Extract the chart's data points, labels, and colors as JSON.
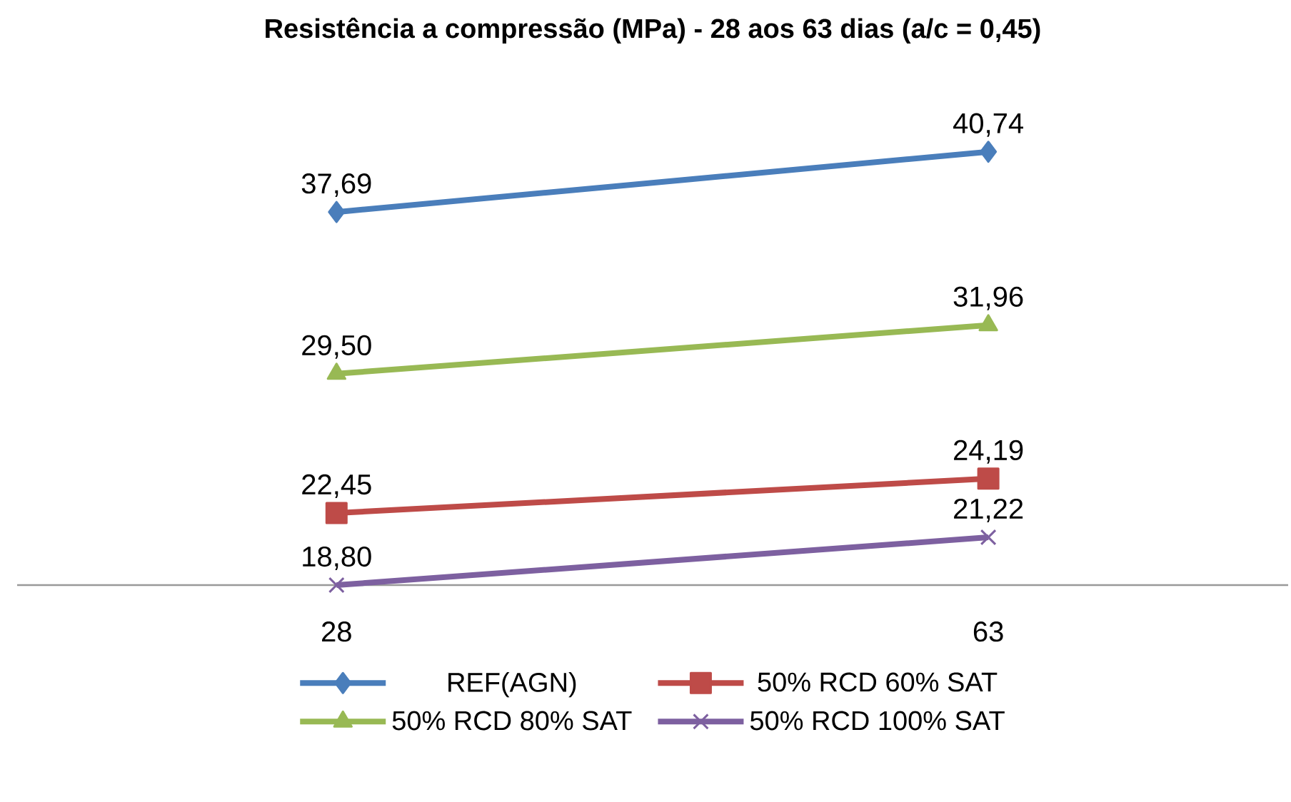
{
  "chart_data": {
    "type": "line",
    "title": "Resistência a compressão (MPa) - 28 aos 63 dias (a/c = 0,45)",
    "categories": [
      "28",
      "63"
    ],
    "series": [
      {
        "name": "REF(AGN)",
        "color": "#4a7ebb",
        "marker": "diamond",
        "values": [
          37.69,
          40.74
        ],
        "value_labels": [
          "37,69",
          "40,74"
        ]
      },
      {
        "name": "50% RCD 60% SAT",
        "color": "#be4b48",
        "marker": "square",
        "values": [
          22.45,
          24.19
        ],
        "value_labels": [
          "22,45",
          "24,19"
        ]
      },
      {
        "name": "50% RCD 80% SAT",
        "color": "#98b954",
        "marker": "triangle",
        "values": [
          29.5,
          31.96
        ],
        "value_labels": [
          "29,50",
          "31,96"
        ]
      },
      {
        "name": "50% RCD 100% SAT",
        "color": "#7d60a0",
        "marker": "cross",
        "values": [
          18.8,
          21.22
        ],
        "value_labels": [
          "18,80",
          "21,22"
        ]
      }
    ],
    "tick_labels": "x",
    "legend": "bottom"
  }
}
